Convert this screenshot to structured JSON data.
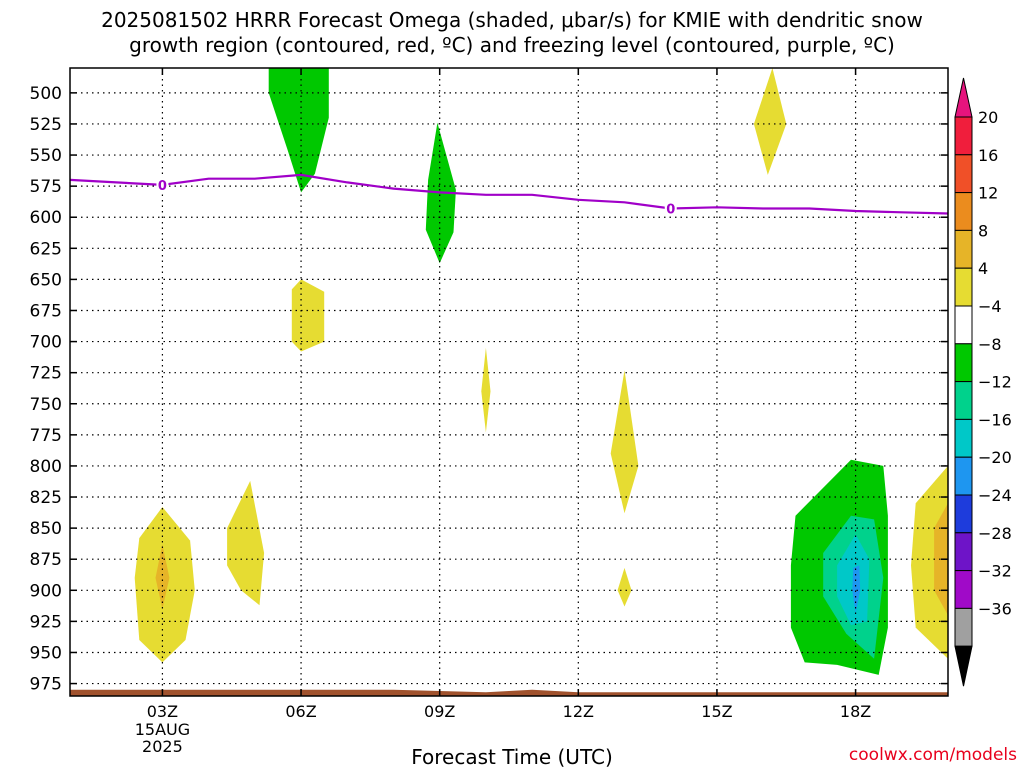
{
  "title": {
    "line1": "2025081502 HRRR Forecast Omega (shaded, μbar/s) for KMIE with dendritic snow",
    "line2": "growth region (contoured, red, ºC) and freezing level (contoured, purple, ºC)"
  },
  "credit": "coolwx.com/models",
  "chart_data": {
    "type": "contour-time-height",
    "xlabel": "Forecast Time (UTC)",
    "ylabel": "",
    "x_unit": "hours after 00Z 15 Aug 2025",
    "xlim": [
      1,
      20
    ],
    "ylim": [
      985,
      480
    ],
    "y_scale": "pressure",
    "grid": true,
    "y_ticks": [
      500,
      525,
      550,
      575,
      600,
      625,
      650,
      675,
      700,
      725,
      750,
      775,
      800,
      825,
      850,
      875,
      900,
      925,
      950,
      975
    ],
    "x_ticks": [
      {
        "t": 3,
        "label": "03Z",
        "sub": [
          "15AUG",
          "2025"
        ]
      },
      {
        "t": 6,
        "label": "06Z",
        "sub": []
      },
      {
        "t": 9,
        "label": "09Z",
        "sub": []
      },
      {
        "t": 12,
        "label": "12Z",
        "sub": []
      },
      {
        "t": 15,
        "label": "15Z",
        "sub": []
      },
      {
        "t": 18,
        "label": "18Z",
        "sub": []
      }
    ],
    "colorbar": {
      "levels": [
        {
          "label": "20",
          "color": "#f01e3c"
        },
        {
          "label": "16",
          "color": "#f05028"
        },
        {
          "label": "12",
          "color": "#eb8c1e"
        },
        {
          "label": "8",
          "color": "#e6b428"
        },
        {
          "label": "4",
          "color": "#e6dc32"
        },
        {
          "label": "−4",
          "color": "#ffffff"
        },
        {
          "label": "−8",
          "color": "#00c800"
        },
        {
          "label": "−12",
          "color": "#00d28c"
        },
        {
          "label": "−16",
          "color": "#00c8c8"
        },
        {
          "label": "−20",
          "color": "#1e96f0"
        },
        {
          "label": "−24",
          "color": "#1e3cdc"
        },
        {
          "label": "−28",
          "color": "#6e14c8"
        },
        {
          "label": "−32",
          "color": "#a00ac8"
        },
        {
          "label": "−36",
          "color": "#a0a0a0"
        }
      ],
      "top_triangle_color": "#e6147d",
      "bottom_triangle_color": "#000000"
    },
    "freezing_level": {
      "value_label": "0",
      "color": "#a000c8",
      "points": [
        [
          1,
          570
        ],
        [
          2,
          572
        ],
        [
          3,
          574
        ],
        [
          4,
          569
        ],
        [
          5,
          569
        ],
        [
          6,
          566
        ],
        [
          7,
          572
        ],
        [
          8,
          577
        ],
        [
          9,
          580
        ],
        [
          10,
          582
        ],
        [
          11,
          582
        ],
        [
          12,
          586
        ],
        [
          13,
          588
        ],
        [
          14,
          593
        ],
        [
          15,
          592
        ],
        [
          16,
          593
        ],
        [
          17,
          593
        ],
        [
          18,
          595
        ],
        [
          19,
          596
        ],
        [
          20,
          597
        ]
      ],
      "label_at": [
        [
          3,
          574
        ],
        [
          14,
          593
        ]
      ]
    },
    "omega_regions": [
      {
        "id": "green-06z-upper",
        "level": "-4",
        "color": "#00c800",
        "poly": [
          [
            5.3,
            480
          ],
          [
            6.6,
            480
          ],
          [
            6.6,
            520
          ],
          [
            6.3,
            565
          ],
          [
            6.0,
            580
          ],
          [
            5.7,
            545
          ],
          [
            5.3,
            500
          ]
        ]
      },
      {
        "id": "green-09z",
        "level": "-4",
        "color": "#00c800",
        "poly": [
          [
            8.95,
            524
          ],
          [
            9.35,
            578
          ],
          [
            9.3,
            612
          ],
          [
            9.0,
            637
          ],
          [
            8.7,
            610
          ],
          [
            8.75,
            570
          ]
        ]
      },
      {
        "id": "yellow-16z-upper",
        "level": "4",
        "color": "#e6dc32",
        "poly": [
          [
            16.2,
            480
          ],
          [
            16.5,
            525
          ],
          [
            16.1,
            566
          ],
          [
            15.8,
            525
          ]
        ]
      },
      {
        "id": "yellow-06z-mid",
        "level": "4",
        "color": "#e6dc32",
        "poly": [
          [
            5.8,
            658
          ],
          [
            6.0,
            650
          ],
          [
            6.5,
            660
          ],
          [
            6.5,
            700
          ],
          [
            6.0,
            708
          ],
          [
            5.8,
            700
          ]
        ]
      },
      {
        "id": "yellow-10z",
        "level": "4",
        "color": "#e6dc32",
        "poly": [
          [
            10.0,
            705
          ],
          [
            10.1,
            740
          ],
          [
            10.0,
            773
          ],
          [
            9.9,
            740
          ]
        ]
      },
      {
        "id": "yellow-13z",
        "level": "4",
        "color": "#e6dc32",
        "poly": [
          [
            13.0,
            723
          ],
          [
            13.3,
            800
          ],
          [
            13.0,
            838
          ],
          [
            12.7,
            790
          ]
        ]
      },
      {
        "id": "yellow-13z-low",
        "level": "4",
        "color": "#e6dc32",
        "poly": [
          [
            13.0,
            882
          ],
          [
            13.15,
            900
          ],
          [
            13.0,
            913
          ],
          [
            12.85,
            900
          ]
        ]
      },
      {
        "id": "yellow-03z",
        "level": "4",
        "color": "#e6dc32",
        "poly": [
          [
            2.5,
            858
          ],
          [
            3.0,
            833
          ],
          [
            3.6,
            860
          ],
          [
            3.7,
            900
          ],
          [
            3.5,
            940
          ],
          [
            3.0,
            958
          ],
          [
            2.5,
            940
          ],
          [
            2.4,
            890
          ]
        ]
      },
      {
        "id": "orange-03z",
        "level": "8",
        "color": "#e6b428",
        "poly": [
          [
            3.0,
            863
          ],
          [
            3.15,
            890
          ],
          [
            3.0,
            915
          ],
          [
            2.85,
            890
          ]
        ]
      },
      {
        "id": "yellow-05z",
        "level": "4",
        "color": "#e6dc32",
        "poly": [
          [
            4.4,
            850
          ],
          [
            4.9,
            812
          ],
          [
            5.2,
            870
          ],
          [
            5.1,
            912
          ],
          [
            4.7,
            900
          ],
          [
            4.4,
            880
          ]
        ]
      },
      {
        "id": "green-18z",
        "level": "-4",
        "color": "#00c800",
        "poly": [
          [
            16.7,
            840
          ],
          [
            17.9,
            795
          ],
          [
            18.6,
            800
          ],
          [
            18.7,
            840
          ],
          [
            18.7,
            930
          ],
          [
            18.5,
            968
          ],
          [
            17.6,
            960
          ],
          [
            16.9,
            958
          ],
          [
            16.6,
            930
          ],
          [
            16.6,
            880
          ]
        ]
      },
      {
        "id": "teal-18z",
        "level": "-8",
        "color": "#00d28c",
        "poly": [
          [
            17.3,
            870
          ],
          [
            17.9,
            840
          ],
          [
            18.4,
            843
          ],
          [
            18.6,
            890
          ],
          [
            18.4,
            955
          ],
          [
            17.8,
            935
          ],
          [
            17.3,
            905
          ]
        ]
      },
      {
        "id": "cyan-18z",
        "level": "-12",
        "color": "#00c8c8",
        "poly": [
          [
            17.6,
            880
          ],
          [
            18.0,
            855
          ],
          [
            18.3,
            875
          ],
          [
            18.25,
            925
          ],
          [
            17.9,
            928
          ],
          [
            17.6,
            905
          ]
        ]
      },
      {
        "id": "blue-18z",
        "level": "-16",
        "color": "#1e96f0",
        "poly": [
          [
            17.95,
            882
          ],
          [
            18.08,
            880
          ],
          [
            18.1,
            900
          ],
          [
            18.0,
            918
          ],
          [
            17.93,
            900
          ]
        ]
      },
      {
        "id": "yellow-20z",
        "level": "4",
        "color": "#e6dc32",
        "poly": [
          [
            20,
            800
          ],
          [
            20,
            955
          ],
          [
            19.3,
            930
          ],
          [
            19.2,
            880
          ],
          [
            19.3,
            830
          ]
        ]
      },
      {
        "id": "orange-20z",
        "level": "8",
        "color": "#e6b428",
        "poly": [
          [
            20,
            830
          ],
          [
            20,
            920
          ],
          [
            19.7,
            900
          ],
          [
            19.7,
            850
          ]
        ]
      }
    ],
    "terrain": {
      "color": "#a0522d",
      "points": [
        [
          1,
          980
        ],
        [
          8,
          980
        ],
        [
          9,
          981
        ],
        [
          10,
          982
        ],
        [
          10.5,
          981
        ],
        [
          11,
          980
        ],
        [
          12,
          982
        ],
        [
          12.5,
          982
        ],
        [
          20,
          982
        ]
      ]
    }
  }
}
